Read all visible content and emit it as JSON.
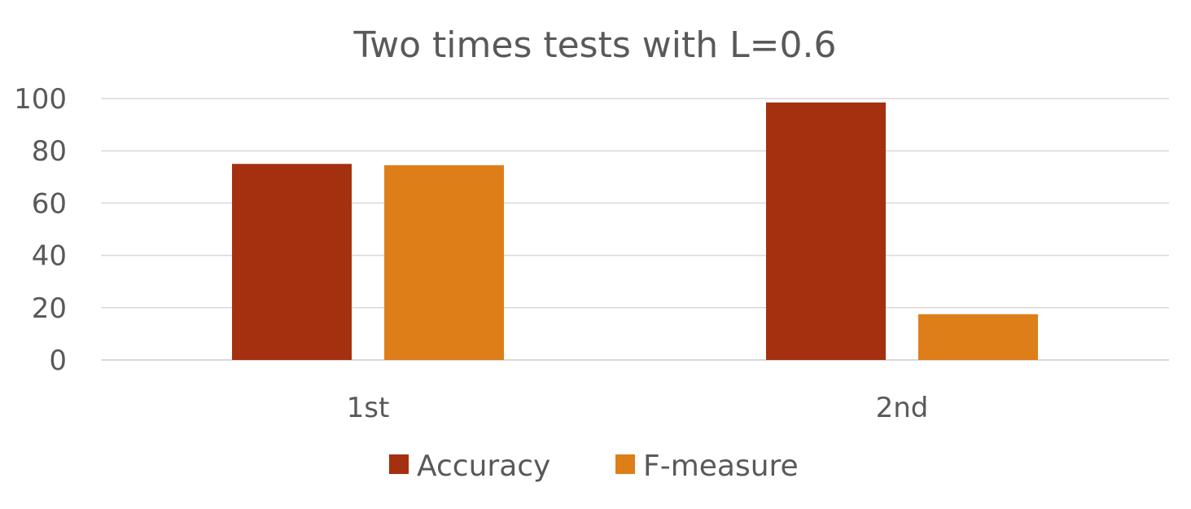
{
  "chart_data": {
    "type": "bar",
    "title": "Two times tests with L=0.6",
    "xlabel": "",
    "ylabel": "",
    "categories": [
      "1st",
      "2nd"
    ],
    "series": [
      {
        "name": "Accuracy",
        "values": [
          75,
          98.5
        ],
        "color": "#a5300f"
      },
      {
        "name": "F-measure",
        "values": [
          74.5,
          17.5
        ],
        "color": "#de7e18"
      }
    ],
    "ylim": [
      0,
      100
    ],
    "yticks": [
      "0",
      "20",
      "40",
      "60",
      "80",
      "100"
    ],
    "grid": true,
    "legend_position": "bottom"
  }
}
